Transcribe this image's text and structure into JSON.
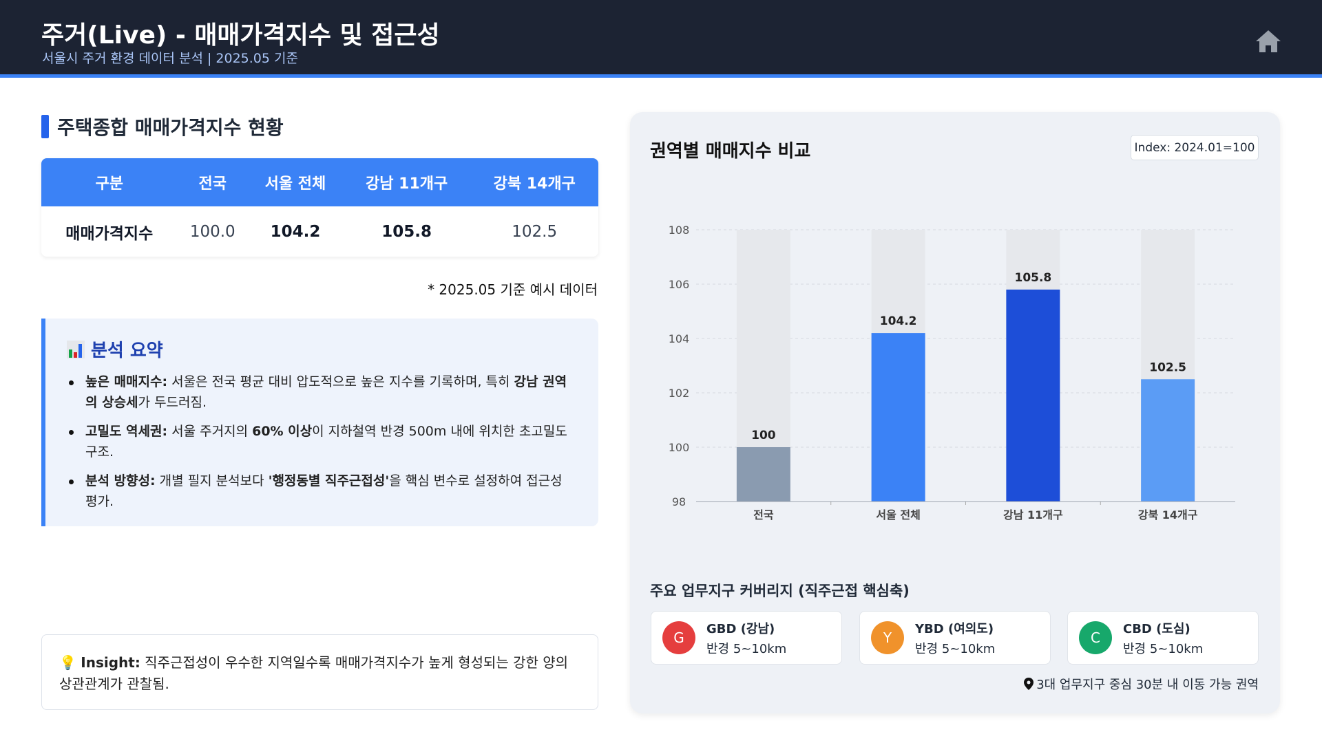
{
  "header": {
    "title": "주거(Live) - 매매가격지수 및 접근성",
    "subtitle": "서울시 주거 환경 데이터 분석 | 2025.05 기준",
    "home_icon": "home-icon"
  },
  "table_section": {
    "title": "주택종합 매매가격지수 현황",
    "headers": [
      "구분",
      "전국",
      "서울 전체",
      "강남 11개구",
      "강북 14개구"
    ],
    "row": [
      "매매가격지수",
      "100.0",
      "104.2",
      "105.8",
      "102.5"
    ],
    "note": "* 2025.05 기준 예시 데이터"
  },
  "summary": {
    "title": "분석 요약",
    "icon": "bar-chart-icon",
    "items": [
      {
        "label": "높은 매매지수:",
        "t1": " 서울은 전국 평균 대비 압도적으로 높은 지수를 기록하며, 특히 ",
        "b2": "강남 권역의 상승세",
        "t2": "가 두드러짐."
      },
      {
        "label": "고밀도 역세권:",
        "t1": " 서울 주거지의 ",
        "b2": "60% 이상",
        "t2": "이 지하철역 반경 500m 내에 위치한 초고밀도 구조."
      },
      {
        "label": "분석 방향성:",
        "t1": " 개별 필지 분석보다 ",
        "b2": "'행정동별 직주근접성'",
        "t2": "을 핵심 변수로 설정하여 접근성 평가."
      }
    ]
  },
  "insight": {
    "label": "Insight:",
    "text": " 직주근접성이 우수한 지역일수록 매매가격지수가 높게 형성되는 강한 양의 상관관계가 관찰됨.",
    "icon": "lightbulb-icon"
  },
  "panel": {
    "title": "권역별 매매지수 비교",
    "badge": "Index: 2024.01=100"
  },
  "chart_data": {
    "type": "bar",
    "categories": [
      "전국",
      "서울 전체",
      "강남 11개구",
      "강북 14개구"
    ],
    "values": [
      100,
      104.2,
      105.8,
      102.5
    ],
    "value_labels": [
      "100",
      "104.2",
      "105.8",
      "102.5"
    ],
    "ylim": [
      98,
      108
    ],
    "yticks": [
      "98",
      "100",
      "102",
      "104",
      "106",
      "108"
    ],
    "grid": true,
    "colors": [
      "#8a9bb0",
      "#3b82f6",
      "#1d4ed8",
      "#5b9cf5"
    ]
  },
  "business": {
    "title": "주요 업무지구 커버리지 (직주근접 핵심축)",
    "cards": [
      {
        "letter": "G",
        "name": "GBD (강남)",
        "radius": "반경 5~10km",
        "color": "#e53e3e"
      },
      {
        "letter": "Y",
        "name": "YBD (여의도)",
        "radius": "반경 5~10km",
        "color": "#f0922b"
      },
      {
        "letter": "C",
        "name": "CBD (도심)",
        "radius": "반경 5~10km",
        "color": "#17a86b"
      }
    ],
    "footnote": "3대 업무지구 중심 30분 내 이동 가능 권역"
  }
}
